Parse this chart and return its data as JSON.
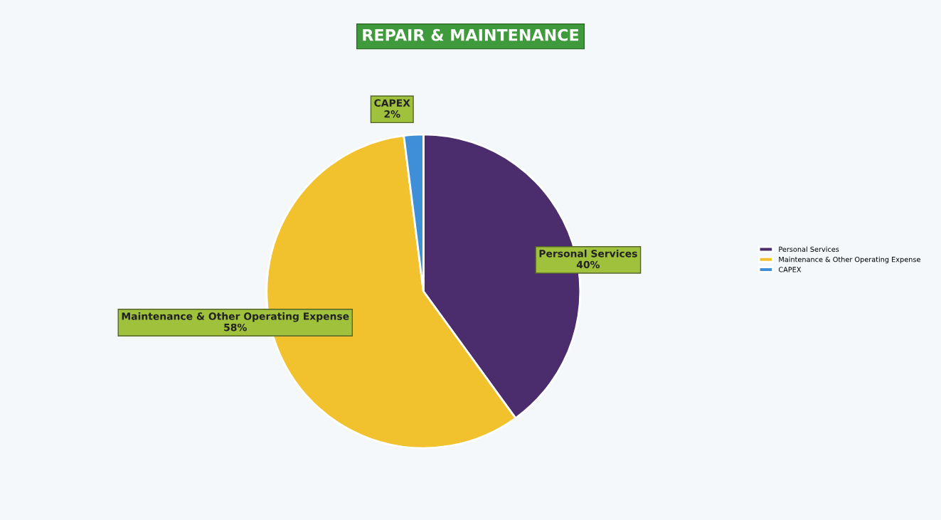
{
  "chart_data": {
    "type": "pie",
    "title": "REPAIR & MAINTENANCE",
    "categories": [
      "Personal Services",
      "Maintenance & Other Operating Expense",
      "CAPEX"
    ],
    "values": [
      40,
      58,
      2
    ],
    "colors": [
      "#4b2d6e",
      "#f2c12e",
      "#3f8fd8"
    ],
    "value_labels": [
      "40%",
      "58%",
      "2%"
    ],
    "legend": "right"
  }
}
